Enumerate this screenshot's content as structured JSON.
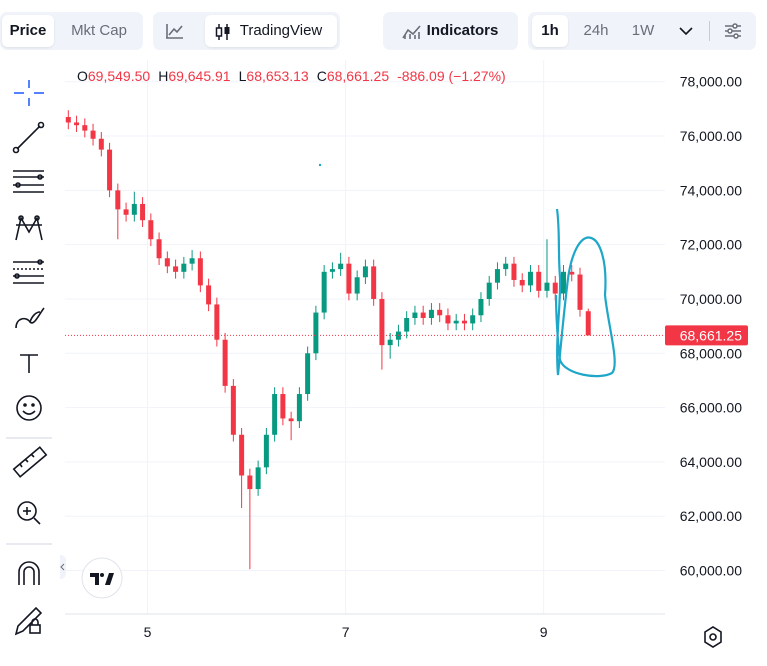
{
  "toolbar": {
    "price": "Price",
    "mkt_cap": "Mkt Cap",
    "tradingview": "TradingView",
    "indicators": "Indicators",
    "intervals": [
      "1h",
      "24h",
      "1W"
    ]
  },
  "chart_data": {
    "type": "candlestick",
    "open": [
      76700,
      76500,
      76400,
      76200,
      75900,
      75500,
      74000,
      73300,
      73100,
      73500,
      72900,
      72200,
      71500,
      71200,
      71000,
      71300,
      71500,
      70500,
      69800,
      68500,
      66800,
      65000,
      63500,
      63000,
      63800,
      65000,
      66500,
      65600,
      65500,
      66500,
      68000,
      69500,
      71000,
      71100,
      71300,
      70200,
      70800,
      71200,
      70000,
      68300,
      68500,
      68800,
      69300,
      69500,
      69300,
      69600,
      69400,
      69100,
      69200,
      69100,
      69400,
      70000,
      70600,
      71100,
      71300,
      70700,
      70500,
      71000,
      70300,
      70600,
      70200,
      71000,
      70900,
      69549.5
    ],
    "high": [
      76950,
      76750,
      76650,
      76450,
      76150,
      75750,
      74250,
      73550,
      73950,
      73750,
      73150,
      72450,
      71750,
      71450,
      71550,
      71800,
      71750,
      70750,
      70050,
      68750,
      67050,
      65250,
      63750,
      64050,
      65250,
      66750,
      66750,
      65850,
      66750,
      68250,
      69750,
      71250,
      71350,
      71700,
      71550,
      71050,
      71450,
      71450,
      70250,
      68750,
      69050,
      69550,
      69750,
      69750,
      69850,
      69850,
      69650,
      69450,
      69450,
      69650,
      70250,
      70850,
      71350,
      71550,
      71550,
      70950,
      71250,
      71250,
      72200,
      70850,
      71250,
      71250,
      71150,
      69645.91
    ],
    "low": [
      76250,
      76150,
      75950,
      75650,
      75250,
      73750,
      72200,
      72850,
      72850,
      72650,
      71950,
      71250,
      70950,
      70750,
      70750,
      71050,
      70250,
      69550,
      68250,
      66550,
      64750,
      62300,
      60050,
      62750,
      63550,
      64750,
      65350,
      64800,
      65250,
      66250,
      67750,
      69250,
      70750,
      70850,
      69950,
      69950,
      70550,
      69750,
      67400,
      67800,
      68250,
      68550,
      69050,
      69050,
      69050,
      69150,
      68850,
      68850,
      68850,
      68850,
      69150,
      69750,
      70350,
      70850,
      70450,
      70250,
      70250,
      70050,
      70050,
      69950,
      69950,
      70650,
      69350,
      68653.13
    ],
    "close": [
      76500,
      76400,
      76200,
      75900,
      75500,
      74000,
      73300,
      73100,
      73500,
      72900,
      72200,
      71500,
      71200,
      71000,
      71300,
      71500,
      70500,
      69800,
      68500,
      66800,
      65000,
      63500,
      63000,
      63800,
      65000,
      66500,
      65600,
      65500,
      66500,
      68000,
      69500,
      71000,
      71100,
      71300,
      70200,
      70800,
      71200,
      70000,
      68300,
      68500,
      68800,
      69300,
      69500,
      69300,
      69600,
      69400,
      69100,
      69200,
      69100,
      69400,
      70000,
      70600,
      71100,
      71300,
      70700,
      70500,
      71000,
      70300,
      70600,
      70200,
      71000,
      70900,
      69600,
      68661.25
    ],
    "up_color": "#089981",
    "down_color": "#f23645",
    "ylim": [
      58400,
      78800
    ],
    "yticks": [
      {
        "value": 60000,
        "label": "60,000.00"
      },
      {
        "value": 62000,
        "label": "62,000.00"
      },
      {
        "value": 64000,
        "label": "64,000.00"
      },
      {
        "value": 66000,
        "label": "66,000.00"
      },
      {
        "value": 68000,
        "label": "68,000.00"
      },
      {
        "value": 70000,
        "label": "70,000.00"
      },
      {
        "value": 72000,
        "label": "72,000.00"
      },
      {
        "value": 74000,
        "label": "74,000.00"
      },
      {
        "value": 76000,
        "label": "76,000.00"
      },
      {
        "value": 78000,
        "label": "78,000.00"
      }
    ],
    "xlim": [
      -0.4,
      72.3
    ],
    "xticks": [
      {
        "value": 9.6,
        "label": "5"
      },
      {
        "value": 33.6,
        "label": "7"
      },
      {
        "value": 57.6,
        "label": "9"
      }
    ],
    "grid": true,
    "last_price": {
      "value": 68661.25,
      "label": "68,661.25"
    },
    "legend": [
      {
        "label": "O",
        "value": "69,549.50"
      },
      {
        "label": "H",
        "value": "69,645.91"
      },
      {
        "label": "L",
        "value": "68,653.13"
      },
      {
        "label": "C",
        "value": "68,661.25"
      }
    ],
    "change": "-886.09 (−1.27%)"
  }
}
